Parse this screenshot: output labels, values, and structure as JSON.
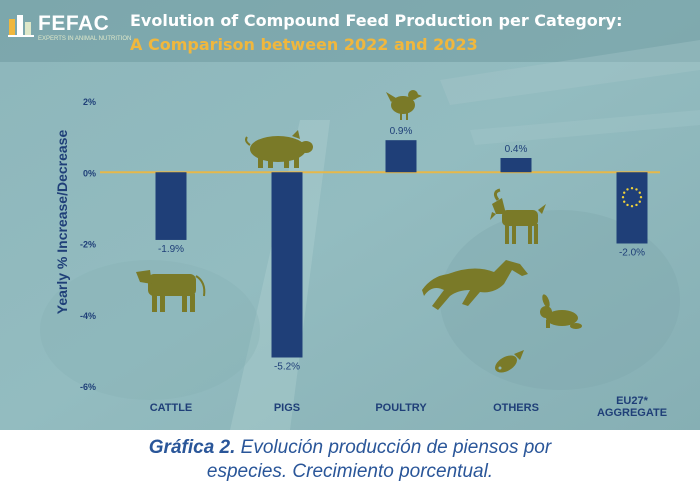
{
  "brand": {
    "name": "FEFAC",
    "tagline": "EXPERTS IN ANIMAL NUTRITION"
  },
  "title": "Evolution of Compound Feed Production per Category:",
  "subtitle": "A Comparison between 2022 and 2023",
  "caption": {
    "prefix": "Gráfica 2.",
    "line1": "Evolución producción de piensos por",
    "line2": "especies. Crecimiento porcentual."
  },
  "colors": {
    "bar": "#1f3f78",
    "zero_line": "#e6b84a",
    "animals": "#7a7a28",
    "title": "#ffffff",
    "subtitle": "#f0b73d",
    "background": "#8fb8bd",
    "caption": "#2a5699"
  },
  "chart_data": {
    "type": "bar",
    "title": "Evolution of Compound Feed Production per Category:",
    "subtitle": "A Comparison between 2022 and 2023",
    "ylabel": "Yearly % Increase/Decrease",
    "xlabel": "",
    "categories": [
      "CATTLE",
      "PIGS",
      "POULTRY",
      "OTHERS",
      "EU27* AGGREGATE"
    ],
    "values": [
      -1.9,
      -5.2,
      0.9,
      0.4,
      -2.0
    ],
    "data_labels": [
      "-1.9%",
      "-5.2%",
      "0.9%",
      "0.4%",
      "-2.0%"
    ],
    "yticks": [
      2,
      0,
      -2,
      -4,
      -6
    ],
    "ytick_labels": [
      "2%",
      "0%",
      "-2%",
      "-4%",
      "-6%"
    ],
    "ylim": [
      -6,
      2
    ],
    "grid": false,
    "legend": "none",
    "icons": [
      "pig-icon",
      "chicken-icon",
      "cow-icon",
      "goat-icon",
      "horse-icon",
      "rabbit-icon",
      "fish-icon",
      "eu-flag-icon"
    ]
  }
}
